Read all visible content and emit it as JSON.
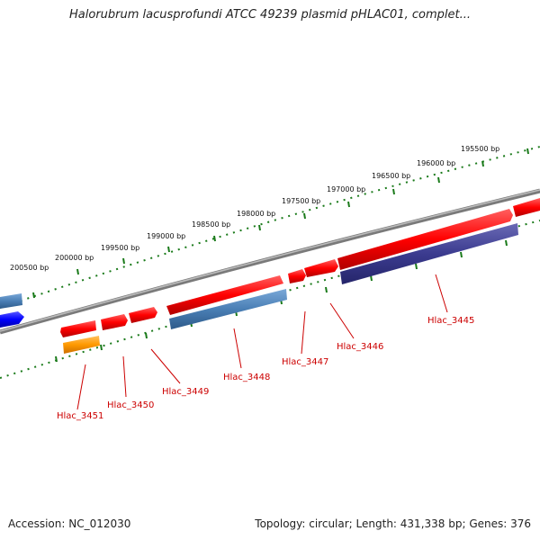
{
  "title": "Halorubrum lacusprofundi ATCC 49239 plasmid pHLAC01, complet...",
  "footer": {
    "accession": "Accession: NC_012030",
    "summary": "Topology: circular; Length: 431,338 bp; Genes: 376"
  },
  "scale_labels": [
    "200500 bp",
    "200000 bp",
    "199500 bp",
    "199000 bp",
    "198500 bp",
    "198000 bp",
    "197500 bp",
    "197000 bp",
    "196500 bp",
    "196000 bp",
    "195500 bp"
  ],
  "genes": [
    "Hlac_3451",
    "Hlac_3450",
    "Hlac_3449",
    "Hlac_3448",
    "Hlac_3447",
    "Hlac_3446",
    "Hlac_3445"
  ],
  "colors": {
    "backbone": "#888888",
    "forward_gene": "#ff0000",
    "reverse_gene_blue": "#4a7fb5",
    "reverse_gene_navy": "#3b3b8f",
    "orange_gene": "#ff9900",
    "bright_blue_gene": "#0000ff",
    "scale_ticks": "#1a7a1a",
    "label_text": "#cc0000"
  }
}
